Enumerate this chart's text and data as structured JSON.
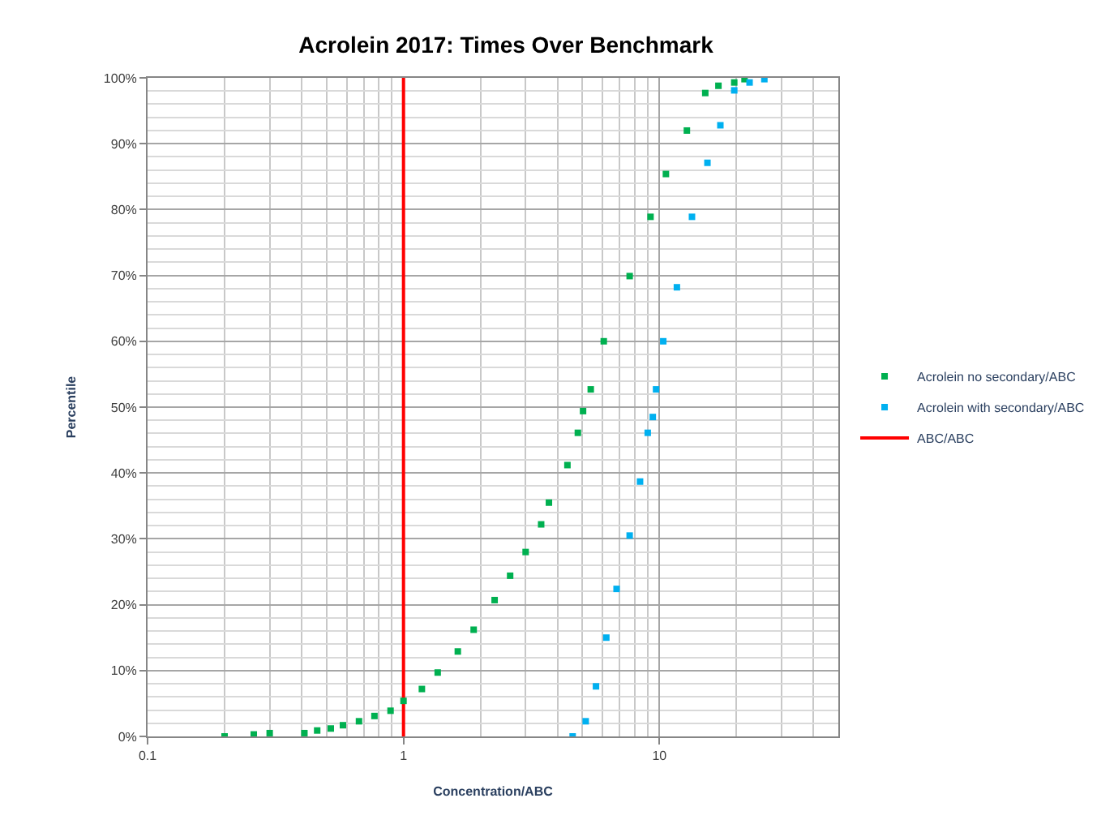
{
  "chart_data": {
    "type": "scatter",
    "title": "Acrolein 2017: Times Over Benchmark",
    "xlabel": "Concentration/ABC",
    "ylabel": "Percentile",
    "log": "x",
    "xlim": [
      0.1,
      50
    ],
    "xticks": [
      0.1,
      1,
      10
    ],
    "ylim": [
      0,
      100
    ],
    "yticks": [
      {
        "value": 0,
        "label": "0%"
      },
      {
        "value": 10,
        "label": "10%"
      },
      {
        "value": 20,
        "label": "20%"
      },
      {
        "value": 30,
        "label": "30%"
      },
      {
        "value": 40,
        "label": "40%"
      },
      {
        "value": 50,
        "label": "50%"
      },
      {
        "value": 60,
        "label": "60%"
      },
      {
        "value": 70,
        "label": "70%"
      },
      {
        "value": 80,
        "label": "80%"
      },
      {
        "value": 90,
        "label": "90%"
      },
      {
        "value": 100,
        "label": "100%"
      }
    ],
    "grid": true,
    "legend": "right",
    "marker": "square",
    "series": [
      {
        "name": "Acrolein no secondary/ABC",
        "color": "#00b050",
        "x": [
          0.2,
          0.26,
          0.3,
          0.41,
          0.46,
          0.52,
          0.58,
          0.67,
          0.77,
          0.89,
          1.0,
          1.18,
          1.36,
          1.63,
          1.88,
          2.27,
          2.61,
          3.0,
          3.45,
          3.7,
          4.37,
          4.8,
          5.03,
          5.39,
          6.06,
          7.65,
          9.23,
          10.6,
          12.8,
          15.1,
          17.0,
          19.6,
          21.5
        ],
        "values": [
          0,
          0.3,
          0.5,
          0.5,
          0.9,
          1.2,
          1.7,
          2.3,
          3.1,
          3.9,
          5.4,
          7.2,
          9.7,
          12.9,
          16.2,
          20.7,
          24.4,
          28,
          32.2,
          35.5,
          41.2,
          46.1,
          49.4,
          52.7,
          60,
          69.9,
          78.9,
          85.4,
          92,
          97.7,
          98.8,
          99.3,
          99.8
        ]
      },
      {
        "name": "Acrolein with secondary/ABC",
        "color": "#00b0f0",
        "x": [
          4.58,
          5.15,
          5.65,
          6.2,
          6.8,
          7.65,
          8.4,
          9.0,
          9.42,
          9.7,
          10.35,
          11.7,
          13.4,
          15.4,
          17.3,
          19.6,
          22.5,
          25.7
        ],
        "values": [
          0,
          2.3,
          7.6,
          15,
          22.4,
          30.5,
          38.7,
          46.1,
          48.5,
          52.7,
          60,
          68.2,
          78.9,
          87.1,
          92.8,
          98.1,
          99.3,
          99.8
        ]
      },
      {
        "name": "ABC/ABC",
        "type": "line",
        "marker": "none",
        "color": "#ff0000",
        "x": [
          1,
          1
        ],
        "values": [
          0,
          100
        ]
      }
    ]
  }
}
